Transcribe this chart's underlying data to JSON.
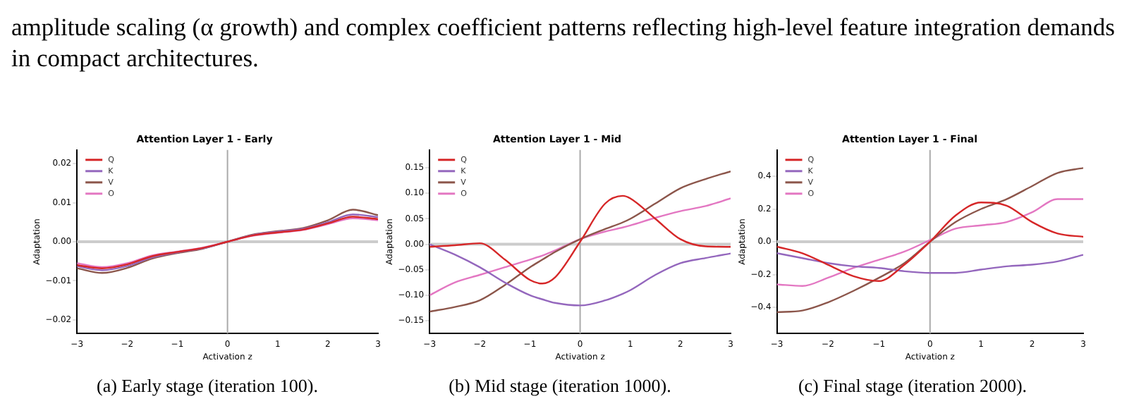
{
  "chart_data": [
    {
      "type": "line",
      "title": "Attention Layer 1 - Early",
      "xlabel": "Activation z",
      "ylabel": "Adaptation",
      "annotations": [
        "amplitude scaling (α growth) and complex coefficient patterns reflecting high-level feature integration demands in compact architectures.",
        "(a) Early stage (iteration 100)."
      ],
      "x": [
        -3,
        -2.5,
        -2,
        -1.5,
        -1,
        -0.5,
        0,
        0.5,
        1,
        1.5,
        2,
        2.5,
        3
      ],
      "xlim": [
        -3,
        3
      ],
      "xticks": [
        -3,
        -2,
        -1,
        0,
        1,
        2,
        3
      ],
      "ylim": [
        -0.0235,
        0.0235
      ],
      "yticks": [
        {
          "value": -0.02,
          "label": "−0.02"
        },
        {
          "value": -0.01,
          "label": "−0.01"
        },
        {
          "value": 0,
          "label": "0.00"
        },
        {
          "value": 0.01,
          "label": "0.01"
        },
        {
          "value": 0.02,
          "label": "0.02"
        }
      ],
      "legend": "top left",
      "grid": false,
      "marker": "none",
      "line_style": "solid",
      "ref_lines": [
        {
          "axis": "y",
          "value": 0,
          "color": "#cccccc"
        },
        {
          "axis": "x",
          "value": 0,
          "color": "#aaaaaa"
        }
      ],
      "series": [
        {
          "name": "Q",
          "color": "#d62728",
          "values": [
            -0.006,
            -0.0068,
            -0.0058,
            -0.0037,
            -0.0026,
            -0.0016,
            0,
            0.0016,
            0.0024,
            0.0031,
            0.0047,
            0.0064,
            0.0058
          ]
        },
        {
          "name": "K",
          "color": "#9467bd",
          "values": [
            -0.0063,
            -0.0073,
            -0.0062,
            -0.004,
            -0.0027,
            -0.0017,
            0,
            0.0017,
            0.0026,
            0.0033,
            0.005,
            0.007,
            0.0063
          ]
        },
        {
          "name": "V",
          "color": "#8c564b",
          "values": [
            -0.0068,
            -0.008,
            -0.0067,
            -0.0043,
            -0.0029,
            -0.0018,
            0,
            0.0018,
            0.0027,
            0.0035,
            0.0055,
            0.0082,
            0.0068
          ]
        },
        {
          "name": "O",
          "color": "#e377c2",
          "values": [
            -0.0055,
            -0.0065,
            -0.0055,
            -0.0035,
            -0.0025,
            -0.0015,
            0,
            0.0015,
            0.0023,
            0.003,
            0.0045,
            0.006,
            0.0055
          ]
        }
      ]
    },
    {
      "type": "line",
      "title": "Attention Layer 1 - Mid",
      "xlabel": "Activation z",
      "ylabel": "Adaptation",
      "annotations": [
        "(b) Mid stage (iteration 1000)."
      ],
      "x": [
        -3,
        -2.5,
        -2,
        -1.5,
        -1,
        -0.75,
        -0.5,
        0,
        0.5,
        0.85,
        1,
        1.5,
        2,
        2.5,
        3
      ],
      "xlim": [
        -3,
        3
      ],
      "xticks": [
        -3,
        -2,
        -1,
        0,
        1,
        2,
        3
      ],
      "ylim": [
        -0.175,
        0.185
      ],
      "yticks": [
        {
          "value": -0.15,
          "label": "−0.15"
        },
        {
          "value": -0.1,
          "label": "−0.10"
        },
        {
          "value": -0.05,
          "label": "−0.05"
        },
        {
          "value": 0,
          "label": "0.00"
        },
        {
          "value": 0.05,
          "label": "0.05"
        },
        {
          "value": 0.1,
          "label": "0.10"
        },
        {
          "value": 0.15,
          "label": "0.15"
        }
      ],
      "legend": "top left",
      "grid": false,
      "marker": "none",
      "line_style": "solid",
      "ref_lines": [
        {
          "axis": "y",
          "value": 0,
          "color": "#cccccc"
        },
        {
          "axis": "x",
          "value": 0,
          "color": "#aaaaaa"
        }
      ],
      "series": [
        {
          "name": "Q",
          "color": "#d62728",
          "values": [
            -0.005,
            -0.002,
            0.002,
            -0.03,
            -0.07,
            -0.077,
            -0.065,
            0.005,
            0.08,
            0.095,
            0.09,
            0.05,
            0.01,
            -0.004,
            -0.005
          ]
        },
        {
          "name": "K",
          "color": "#9467bd",
          "values": [
            0,
            -0.02,
            -0.045,
            -0.075,
            -0.1,
            -0.108,
            -0.115,
            -0.12,
            -0.11,
            -0.097,
            -0.09,
            -0.06,
            -0.037,
            -0.027,
            -0.018
          ]
        },
        {
          "name": "V",
          "color": "#8c564b",
          "values": [
            -0.132,
            -0.123,
            -0.11,
            -0.08,
            -0.045,
            -0.03,
            -0.015,
            0.01,
            0.03,
            0.043,
            0.05,
            0.08,
            0.11,
            0.128,
            0.143
          ]
        },
        {
          "name": "O",
          "color": "#e377c2",
          "values": [
            -0.1,
            -0.075,
            -0.06,
            -0.045,
            -0.03,
            -0.022,
            -0.012,
            0.01,
            0.025,
            0.033,
            0.037,
            0.052,
            0.065,
            0.075,
            0.09
          ]
        }
      ]
    },
    {
      "type": "line",
      "title": "Attention Layer 1 - Final",
      "xlabel": "Activation z",
      "ylabel": "Adaptation",
      "annotations": [
        "(c) Final stage (iteration 2000)."
      ],
      "x": [
        -3,
        -2.5,
        -2,
        -1.5,
        -1,
        -0.5,
        0,
        0.5,
        1,
        1.5,
        2,
        2.5,
        3
      ],
      "xlim": [
        -3,
        3
      ],
      "xticks": [
        -3,
        -2,
        -1,
        0,
        1,
        2,
        3
      ],
      "ylim": [
        -0.56,
        0.56
      ],
      "yticks": [
        {
          "value": -0.4,
          "label": "−0.4"
        },
        {
          "value": -0.2,
          "label": "−0.2"
        },
        {
          "value": 0,
          "label": "0.0"
        },
        {
          "value": 0.2,
          "label": "0.2"
        },
        {
          "value": 0.4,
          "label": "0.4"
        }
      ],
      "legend": "top left",
      "grid": false,
      "marker": "none",
      "line_style": "solid",
      "ref_lines": [
        {
          "axis": "y",
          "value": 0,
          "color": "#cccccc"
        },
        {
          "axis": "x",
          "value": 0,
          "color": "#aaaaaa"
        }
      ],
      "series": [
        {
          "name": "Q",
          "color": "#d62728",
          "values": [
            -0.03,
            -0.07,
            -0.14,
            -0.21,
            -0.24,
            -0.14,
            0.0,
            0.16,
            0.24,
            0.22,
            0.12,
            0.05,
            0.03
          ]
        },
        {
          "name": "K",
          "color": "#9467bd",
          "values": [
            -0.07,
            -0.1,
            -0.13,
            -0.15,
            -0.16,
            -0.18,
            -0.19,
            -0.19,
            -0.17,
            -0.15,
            -0.14,
            -0.12,
            -0.08
          ]
        },
        {
          "name": "V",
          "color": "#8c564b",
          "values": [
            -0.43,
            -0.42,
            -0.37,
            -0.3,
            -0.22,
            -0.13,
            0.0,
            0.12,
            0.2,
            0.26,
            0.34,
            0.42,
            0.45
          ]
        },
        {
          "name": "O",
          "color": "#e377c2",
          "values": [
            -0.26,
            -0.27,
            -0.22,
            -0.16,
            -0.11,
            -0.06,
            0.01,
            0.08,
            0.1,
            0.12,
            0.18,
            0.26,
            0.26
          ]
        }
      ]
    }
  ]
}
